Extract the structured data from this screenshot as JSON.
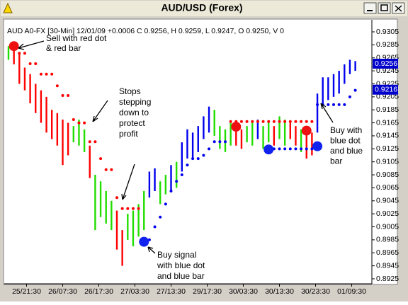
{
  "window_title": "AUD/USD (Forex)",
  "chart_data": {
    "type": "ohlc",
    "subtitle": "AUD A0-FX [30-Min] 12/01/09 +0.0006 C 0.9256, H 0.9259, L 0.9247, O 0.9250, V 0",
    "xlim": [
      0,
      200
    ],
    "ylim": [
      0.8925,
      0.9305
    ],
    "xticks": [
      {
        "value": 10,
        "label": "25/21:30"
      },
      {
        "value": 30,
        "label": "26/07:30"
      },
      {
        "value": 50,
        "label": "26/17:30"
      },
      {
        "value": 70,
        "label": "27/03:30"
      },
      {
        "value": 90,
        "label": "27/13:30"
      },
      {
        "value": 110,
        "label": "29/17:30"
      },
      {
        "value": 130,
        "label": "30/03:30"
      },
      {
        "value": 150,
        "label": "30/13:30"
      },
      {
        "value": 170,
        "label": "30/23:30"
      },
      {
        "value": 190,
        "label": "01/09:30"
      }
    ],
    "yticks": [
      0.9305,
      0.9285,
      0.9265,
      0.9245,
      0.9225,
      0.9205,
      0.9185,
      0.9165,
      0.9145,
      0.9125,
      0.9105,
      0.9085,
      0.9065,
      0.9045,
      0.9025,
      0.9005,
      0.8985,
      0.8965,
      0.8945,
      0.8925
    ],
    "bars": [
      {
        "color": "#ff0000",
        "x": [
          3,
          6,
          9,
          12,
          15,
          18,
          21,
          24,
          27,
          30,
          33,
          45,
          60,
          63,
          126,
          129,
          147,
          156,
          159,
          165,
          168
        ],
        "low": [
          0.9255,
          0.9225,
          0.9215,
          0.9195,
          0.918,
          0.9165,
          0.915,
          0.914,
          0.913,
          0.91,
          0.9115,
          0.908,
          0.897,
          0.8945,
          0.913,
          0.9125,
          0.913,
          0.914,
          0.913,
          0.911,
          0.9115
        ],
        "high": [
          0.9285,
          0.927,
          0.925,
          0.924,
          0.9225,
          0.9215,
          0.9205,
          0.9185,
          0.918,
          0.917,
          0.9165,
          0.913,
          0.903,
          0.9,
          0.916,
          0.9155,
          0.916,
          0.9165,
          0.916,
          0.915,
          0.915
        ]
      },
      {
        "color": "#22dd00",
        "x": [
          0,
          36,
          39,
          42,
          48,
          51,
          54,
          57,
          66,
          69,
          72,
          75,
          84,
          87,
          93,
          114,
          117,
          120,
          123,
          132,
          135,
          141,
          144,
          150,
          153,
          162
        ],
        "low": [
          0.9262,
          0.9135,
          0.913,
          0.912,
          0.9,
          0.902,
          0.901,
          0.9,
          0.8985,
          0.8975,
          0.899,
          0.9,
          0.904,
          0.9055,
          0.9065,
          0.9145,
          0.9125,
          0.912,
          0.913,
          0.9135,
          0.913,
          0.9125,
          0.9135,
          0.914,
          0.913,
          0.912
        ],
        "high": [
          0.9283,
          0.916,
          0.917,
          0.9155,
          0.9085,
          0.9075,
          0.906,
          0.9045,
          0.9025,
          0.903,
          0.904,
          0.906,
          0.9075,
          0.9085,
          0.9105,
          0.9185,
          0.916,
          0.9155,
          0.9165,
          0.916,
          0.9165,
          0.916,
          0.9165,
          0.9175,
          0.917,
          0.9155
        ]
      },
      {
        "color": "#0000ee",
        "x": [
          78,
          81,
          90,
          96,
          99,
          102,
          105,
          108,
          111,
          138,
          171,
          174,
          177,
          180,
          183,
          186,
          189,
          192
        ],
        "low": [
          0.905,
          0.906,
          0.906,
          0.909,
          0.911,
          0.911,
          0.912,
          0.914,
          0.915,
          0.914,
          0.915,
          0.9195,
          0.92,
          0.9205,
          0.921,
          0.9225,
          0.924,
          0.9245
        ],
        "high": [
          0.909,
          0.9095,
          0.91,
          0.9135,
          0.9155,
          0.915,
          0.916,
          0.9175,
          0.919,
          0.917,
          0.921,
          0.9235,
          0.9235,
          0.924,
          0.9245,
          0.9255,
          0.9262,
          0.926
        ]
      }
    ],
    "stops": [
      {
        "color": "#ff0000",
        "x": [
          6,
          9,
          12,
          15,
          18,
          21,
          24,
          27,
          30,
          33,
          36,
          39,
          42,
          45,
          48,
          51,
          54,
          57,
          60,
          63,
          66,
          69,
          72,
          123,
          126,
          129,
          132,
          135,
          138,
          141,
          144,
          147,
          150,
          153,
          156,
          159,
          162,
          165,
          168
        ],
        "values": [
          0.9272,
          0.9272,
          0.9256,
          0.9256,
          0.924,
          0.924,
          0.924,
          0.9222,
          0.9207,
          0.9207,
          0.917,
          0.9165,
          0.9165,
          0.9136,
          0.9136,
          0.911,
          0.9093,
          0.9093,
          0.905,
          0.9033,
          0.9033,
          0.9033,
          0.9033,
          0.9167,
          0.9167,
          0.9167,
          0.9167,
          0.9167,
          0.9167,
          0.9167,
          0.9167,
          0.9167,
          0.9167,
          0.9167,
          0.9167,
          0.9167,
          0.9167,
          0.9167,
          0.9167
        ]
      },
      {
        "color": "#0000ee",
        "x": [
          78,
          81,
          84,
          87,
          90,
          93,
          96,
          99,
          102,
          105,
          108,
          111,
          114,
          117,
          120,
          144,
          147,
          150,
          153,
          156,
          159,
          162,
          165,
          168,
          171,
          174,
          177,
          180,
          183,
          186,
          189,
          192
        ],
        "values": [
          0.8985,
          0.9005,
          0.902,
          0.904,
          0.906,
          0.9075,
          0.9085,
          0.91,
          0.911,
          0.911,
          0.9115,
          0.9125,
          0.9136,
          0.9136,
          0.9136,
          0.9125,
          0.9125,
          0.9125,
          0.9125,
          0.9125,
          0.9125,
          0.9125,
          0.9125,
          0.9125,
          0.9193,
          0.9193,
          0.9193,
          0.9193,
          0.9193,
          0.9193,
          0.9205,
          0.9215
        ]
      }
    ],
    "signals": [
      {
        "color": "#ee1111",
        "x": [
          3,
          126,
          165
        ],
        "values": [
          0.9283,
          0.9159,
          0.9153
        ]
      },
      {
        "color": "#1122ee",
        "x": [
          75,
          144,
          171
        ],
        "values": [
          0.8982,
          0.9124,
          0.9129
        ]
      }
    ],
    "price_boxes": [
      0.9256,
      0.9216
    ],
    "annotations": [
      {
        "lines": [
          "Sell with red dot",
          "& red bar"
        ]
      },
      {
        "lines": [
          "Stops",
          "stepping",
          "down to",
          "protect",
          "profit"
        ]
      },
      {
        "lines": [
          "Buy signal",
          "with blue dot",
          "and blue bar"
        ]
      },
      {
        "lines": [
          "Buy with",
          "blue dot",
          "and blue",
          "bar"
        ]
      }
    ]
  }
}
